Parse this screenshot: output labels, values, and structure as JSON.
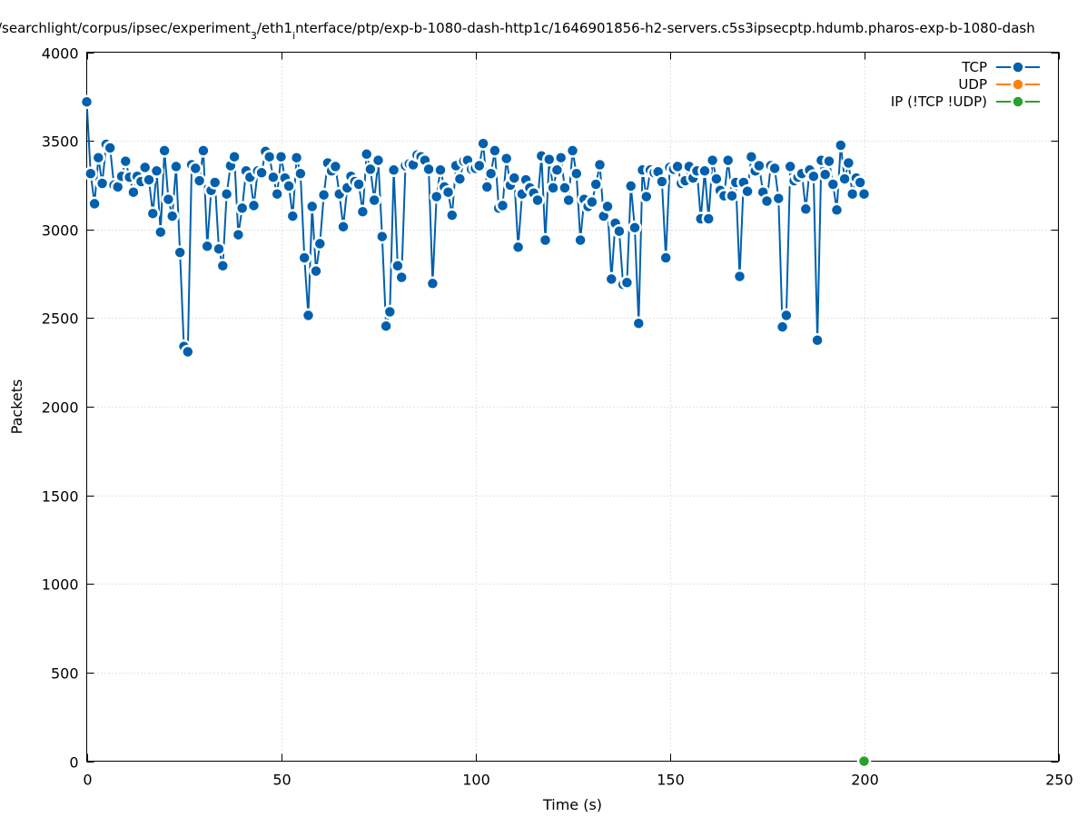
{
  "chart_data": {
    "type": "line",
    "title_parts": [
      "/searchlight/corpus/ipsec/experiment",
      "3",
      "/eth1",
      "i",
      "nterface/ptp/exp-b-1080-dash-http1c/1646901856-h2-servers.c5s3ipsecptp.hdumb.pharos-exp-b-1080-dash"
    ],
    "xlabel": "Time (s)",
    "ylabel": "Packets",
    "xlim": [
      0,
      250
    ],
    "ylim": [
      0,
      4000
    ],
    "xticks": [
      0,
      50,
      100,
      150,
      200,
      250
    ],
    "yticks": [
      0,
      500,
      1000,
      1500,
      2000,
      2500,
      3000,
      3500,
      4000
    ],
    "grid": true,
    "legend_position": "top-right",
    "series": [
      {
        "name": "TCP",
        "color": "#0060ad",
        "x": [
          0,
          1,
          2,
          3,
          4,
          5,
          6,
          7,
          8,
          9,
          10,
          11,
          12,
          13,
          14,
          15,
          16,
          17,
          18,
          19,
          20,
          21,
          22,
          23,
          24,
          25,
          26,
          27,
          28,
          29,
          30,
          31,
          32,
          33,
          34,
          35,
          36,
          37,
          38,
          39,
          40,
          41,
          42,
          43,
          44,
          45,
          46,
          47,
          48,
          49,
          50,
          51,
          52,
          53,
          54,
          55,
          56,
          57,
          58,
          59,
          60,
          61,
          62,
          63,
          64,
          65,
          66,
          67,
          68,
          69,
          70,
          71,
          72,
          73,
          74,
          75,
          76,
          77,
          78,
          79,
          80,
          81,
          82,
          83,
          84,
          85,
          86,
          87,
          88,
          89,
          90,
          91,
          92,
          93,
          94,
          95,
          96,
          97,
          98,
          99,
          100,
          101,
          102,
          103,
          104,
          105,
          106,
          107,
          108,
          109,
          110,
          111,
          112,
          113,
          114,
          115,
          116,
          117,
          118,
          119,
          120,
          121,
          122,
          123,
          124,
          125,
          126,
          127,
          128,
          129,
          130,
          131,
          132,
          133,
          134,
          135,
          136,
          137,
          138,
          139,
          140,
          141,
          142,
          143,
          144,
          145,
          146,
          147,
          148,
          149,
          150,
          151,
          152,
          153,
          154,
          155,
          156,
          157,
          158,
          159,
          160,
          161,
          162,
          163,
          164,
          165,
          166,
          167,
          168,
          169,
          170,
          171,
          172,
          173,
          174,
          175,
          176,
          177,
          178,
          179,
          180,
          181,
          182,
          183,
          184,
          185,
          186,
          187,
          188,
          189,
          190,
          191,
          192,
          193,
          194,
          195,
          196,
          197,
          198,
          199,
          200
        ],
        "y": [
          3720,
          3315,
          3145,
          3405,
          3260,
          3480,
          3460,
          3250,
          3240,
          3300,
          3385,
          3295,
          3210,
          3300,
          3270,
          3350,
          3280,
          3090,
          3330,
          2985,
          3445,
          3170,
          3075,
          3355,
          2870,
          2340,
          2310,
          3365,
          3345,
          3275,
          3445,
          2905,
          3220,
          3265,
          2890,
          2795,
          3200,
          3360,
          3410,
          2970,
          3120,
          3330,
          3295,
          3135,
          3330,
          3320,
          3440,
          3410,
          3295,
          3200,
          3410,
          3290,
          3245,
          3075,
          3405,
          3315,
          2840,
          2515,
          3130,
          2765,
          2920,
          3195,
          3375,
          3330,
          3355,
          3200,
          3015,
          3235,
          3300,
          3270,
          3255,
          3100,
          3425,
          3340,
          3165,
          3390,
          2960,
          2455,
          2535,
          3335,
          2795,
          2730,
          3360,
          3370,
          3365,
          3420,
          3410,
          3390,
          3340,
          2695,
          3185,
          3335,
          3240,
          3210,
          3080,
          3360,
          3285,
          3385,
          3390,
          3340,
          3345,
          3360,
          3485,
          3240,
          3315,
          3445,
          3120,
          3135,
          3400,
          3250,
          3290,
          2900,
          3200,
          3280,
          3235,
          3205,
          3165,
          3415,
          2940,
          3395,
          3235,
          3335,
          3405,
          3235,
          3165,
          3445,
          3315,
          2940,
          3170,
          3130,
          3155,
          3255,
          3365,
          3075,
          3130,
          2720,
          3035,
          2990,
          2690,
          2700,
          3245,
          3010,
          2470,
          3335,
          3185,
          3335,
          3320,
          3325,
          3270,
          2840,
          3350,
          3340,
          3355,
          3260,
          3275,
          3355,
          3290,
          3330,
          3060,
          3330,
          3060,
          3390,
          3285,
          3220,
          3190,
          3390,
          3190,
          3265,
          2735,
          3265,
          3215,
          3410,
          3330,
          3360,
          3210,
          3160,
          3360,
          3345,
          3175,
          2450,
          2515,
          3355,
          3275,
          3295,
          3315,
          3115,
          3335,
          3300,
          2375,
          3390,
          3310,
          3385,
          3255,
          3110,
          3475,
          3285,
          3375,
          3200,
          3290,
          3265,
          3200
        ]
      },
      {
        "name": "UDP",
        "color": "#ff7f0e",
        "x": [],
        "y": []
      },
      {
        "name": "IP (!TCP  !UDP)",
        "color": "#2ca02c",
        "x": [
          200
        ],
        "y": [
          0
        ]
      }
    ]
  },
  "colors": {
    "grid": "#c8c8c8",
    "axis": "#000000",
    "marker_outline": "#ffffff"
  }
}
